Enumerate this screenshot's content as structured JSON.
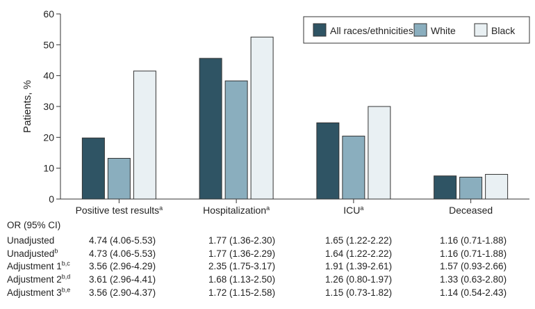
{
  "chart_data": {
    "type": "bar",
    "ylabel": "Patients, %",
    "ylim": [
      0,
      60
    ],
    "yticks": [
      0,
      10,
      20,
      30,
      40,
      50,
      60
    ],
    "grid": false,
    "legend_position": "top-right",
    "categories": [
      {
        "label": "Positive test results",
        "sup": "a"
      },
      {
        "label": "Hospitalization",
        "sup": "a"
      },
      {
        "label": "ICU",
        "sup": "a"
      },
      {
        "label": "Deceased",
        "sup": ""
      }
    ],
    "series": [
      {
        "name": "All races/ethnicities",
        "color": "#2f5464",
        "values": [
          19.8,
          45.6,
          24.7,
          7.5
        ]
      },
      {
        "name": "White",
        "color": "#8aaebe",
        "values": [
          13.2,
          38.3,
          20.4,
          7.1
        ]
      },
      {
        "name": "Black",
        "color": "#e9f0f3",
        "values": [
          41.5,
          52.5,
          30.0,
          8.0
        ]
      }
    ]
  },
  "or_table": {
    "heading": "OR (95% CI)",
    "rows": [
      {
        "label": "Unadjusted",
        "sup": "",
        "values": [
          "4.74 (4.06-5.53)",
          "1.77 (1.36-2.30)",
          "1.65 (1.22-2.22)",
          "1.16 (0.71-1.88)"
        ]
      },
      {
        "label": "Unadjusted",
        "sup": "b",
        "values": [
          "4.73 (4.06-5.53)",
          "1.77 (1.36-2.29)",
          "1.64 (1.22-2.22)",
          "1.16 (0.71-1.88)"
        ]
      },
      {
        "label": "Adjustment 1",
        "sup": "b,c",
        "values": [
          "3.56 (2.96-4.29)",
          "2.35 (1.75-3.17)",
          "1.91 (1.39-2.61)",
          "1.57 (0.93-2.66)"
        ]
      },
      {
        "label": "Adjustment 2",
        "sup": "b,d",
        "values": [
          "3.61 (2.96-4.41)",
          "1.68 (1.13-2.50)",
          "1.26 (0.80-1.97)",
          "1.33 (0.63-2.80)"
        ]
      },
      {
        "label": "Adjustment 3",
        "sup": "b,e",
        "values": [
          "3.56 (2.90-4.37)",
          "1.72 (1.15-2.58)",
          "1.15 (0.73-1.82)",
          "1.14 (0.54-2.43)"
        ]
      }
    ]
  }
}
